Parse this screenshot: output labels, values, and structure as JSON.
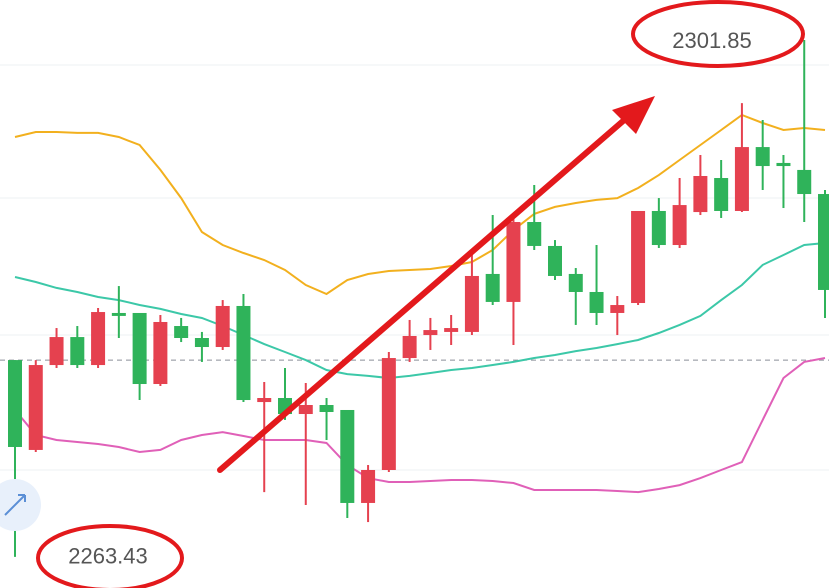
{
  "chart_data": {
    "type": "candlestick",
    "ylim": [
      2261.12,
      2304.82
    ],
    "up_color": "#e5414f",
    "down_color": "#2fb35a",
    "open": [
      2278.06,
      2271.38,
      2277.69,
      2279.77,
      2277.69,
      2281.56,
      2281.56,
      2276.28,
      2280.59,
      2279.7,
      2279.03,
      2282.08,
      2274.94,
      2275.24,
      2274.05,
      2274.72,
      2274.35,
      2267.44,
      2269.89,
      2278.21,
      2279.92,
      2280.15,
      2280.15,
      2284.46,
      2282.38,
      2288.32,
      2286.54,
      2284.46,
      2283.12,
      2281.56,
      2282.3,
      2289.14,
      2286.61,
      2289.06,
      2291.59,
      2289.14,
      2293.89,
      2292.71,
      2292.19,
      2290.4
    ],
    "high": [
      2278.06,
      2278.06,
      2280.44,
      2280.59,
      2281.93,
      2283.56,
      2281.56,
      2281.41,
      2281.19,
      2280.15,
      2282.52,
      2282.97,
      2276.43,
      2277.47,
      2276.36,
      2275.24,
      2274.35,
      2270.26,
      2278.66,
      2281.04,
      2281.19,
      2281.41,
      2285.87,
      2288.84,
      2288.62,
      2291.07,
      2286.98,
      2284.9,
      2286.61,
      2282.82,
      2289.14,
      2290.1,
      2291.59,
      2293.3,
      2292.93,
      2297.16,
      2295.9,
      2293.3,
      2301.85,
      2290.7
    ],
    "low": [
      2263.43,
      2271.23,
      2277.47,
      2277.47,
      2277.47,
      2279.7,
      2275.09,
      2276.13,
      2279.4,
      2277.92,
      2278.81,
      2274.94,
      2268.25,
      2273.61,
      2267.29,
      2272.12,
      2266.32,
      2266.02,
      2269.74,
      2277.92,
      2278.81,
      2279.18,
      2279.92,
      2282.15,
      2279.18,
      2286.24,
      2284.01,
      2280.67,
      2280.67,
      2279.92,
      2282.15,
      2286.39,
      2286.39,
      2288.84,
      2288.62,
      2289.06,
      2290.7,
      2289.36,
      2288.32,
      2281.19
    ],
    "close": [
      2271.6,
      2277.69,
      2279.77,
      2277.69,
      2281.63,
      2281.34,
      2276.28,
      2280.89,
      2279.7,
      2279.03,
      2282.08,
      2275.09,
      2275.24,
      2274.05,
      2274.72,
      2274.2,
      2267.44,
      2269.89,
      2278.21,
      2279.85,
      2280.29,
      2280.44,
      2284.31,
      2282.38,
      2288.32,
      2286.54,
      2284.31,
      2283.12,
      2281.56,
      2282.15,
      2289.14,
      2286.61,
      2289.58,
      2291.74,
      2289.14,
      2293.89,
      2292.48,
      2292.48,
      2290.4,
      2283.27
    ],
    "lines": [
      {
        "color": "#f2b01e",
        "values": [
          2294.64,
          2295.01,
          2295.01,
          2294.94,
          2294.94,
          2294.64,
          2294.04,
          2292.19,
          2290.1,
          2287.58,
          2286.61,
          2286.02,
          2285.5,
          2284.75,
          2283.64,
          2282.97,
          2284.01,
          2284.46,
          2284.68,
          2284.75,
          2284.83,
          2285.05,
          2285.35,
          2286.24,
          2287.73,
          2288.92,
          2289.44,
          2289.73,
          2289.96,
          2290.1,
          2290.85,
          2291.81,
          2292.93,
          2294.04,
          2295.16,
          2296.27,
          2295.68,
          2295.16,
          2295.31,
          2295.16
        ]
      },
      {
        "color": "#3cc8a8",
        "values": [
          2284.23,
          2283.86,
          2283.42,
          2283.12,
          2282.75,
          2282.52,
          2282.15,
          2281.86,
          2281.48,
          2281.19,
          2280.59,
          2279.92,
          2279.25,
          2278.66,
          2278.06,
          2277.32,
          2277.02,
          2276.88,
          2276.73,
          2276.88,
          2277.1,
          2277.32,
          2277.47,
          2277.69,
          2277.92,
          2278.21,
          2278.44,
          2278.73,
          2278.96,
          2279.25,
          2279.55,
          2280.07,
          2280.67,
          2281.34,
          2282.52,
          2283.64,
          2285.13,
          2285.87,
          2286.61,
          2286.76
        ]
      },
      {
        "color": "#e060b8",
        "values": [
          2274.35,
          2272.49,
          2272.12,
          2271.97,
          2271.82,
          2271.6,
          2271.23,
          2271.38,
          2272.12,
          2272.49,
          2272.71,
          2272.42,
          2272.12,
          2272.12,
          2272.12,
          2271.9,
          2270.26,
          2269.29,
          2269.0,
          2269.0,
          2269.07,
          2269.15,
          2269.15,
          2269.07,
          2268.92,
          2268.4,
          2268.4,
          2268.4,
          2268.4,
          2268.33,
          2268.25,
          2268.48,
          2268.77,
          2269.29,
          2269.89,
          2270.48,
          2273.61,
          2276.73,
          2277.92,
          2278.21
        ]
      }
    ],
    "reference_line": 2278.06,
    "high_label": {
      "value": 2301.85,
      "label": "2301.85"
    },
    "low_label": {
      "value": 2263.43,
      "label": "2263.43"
    }
  }
}
